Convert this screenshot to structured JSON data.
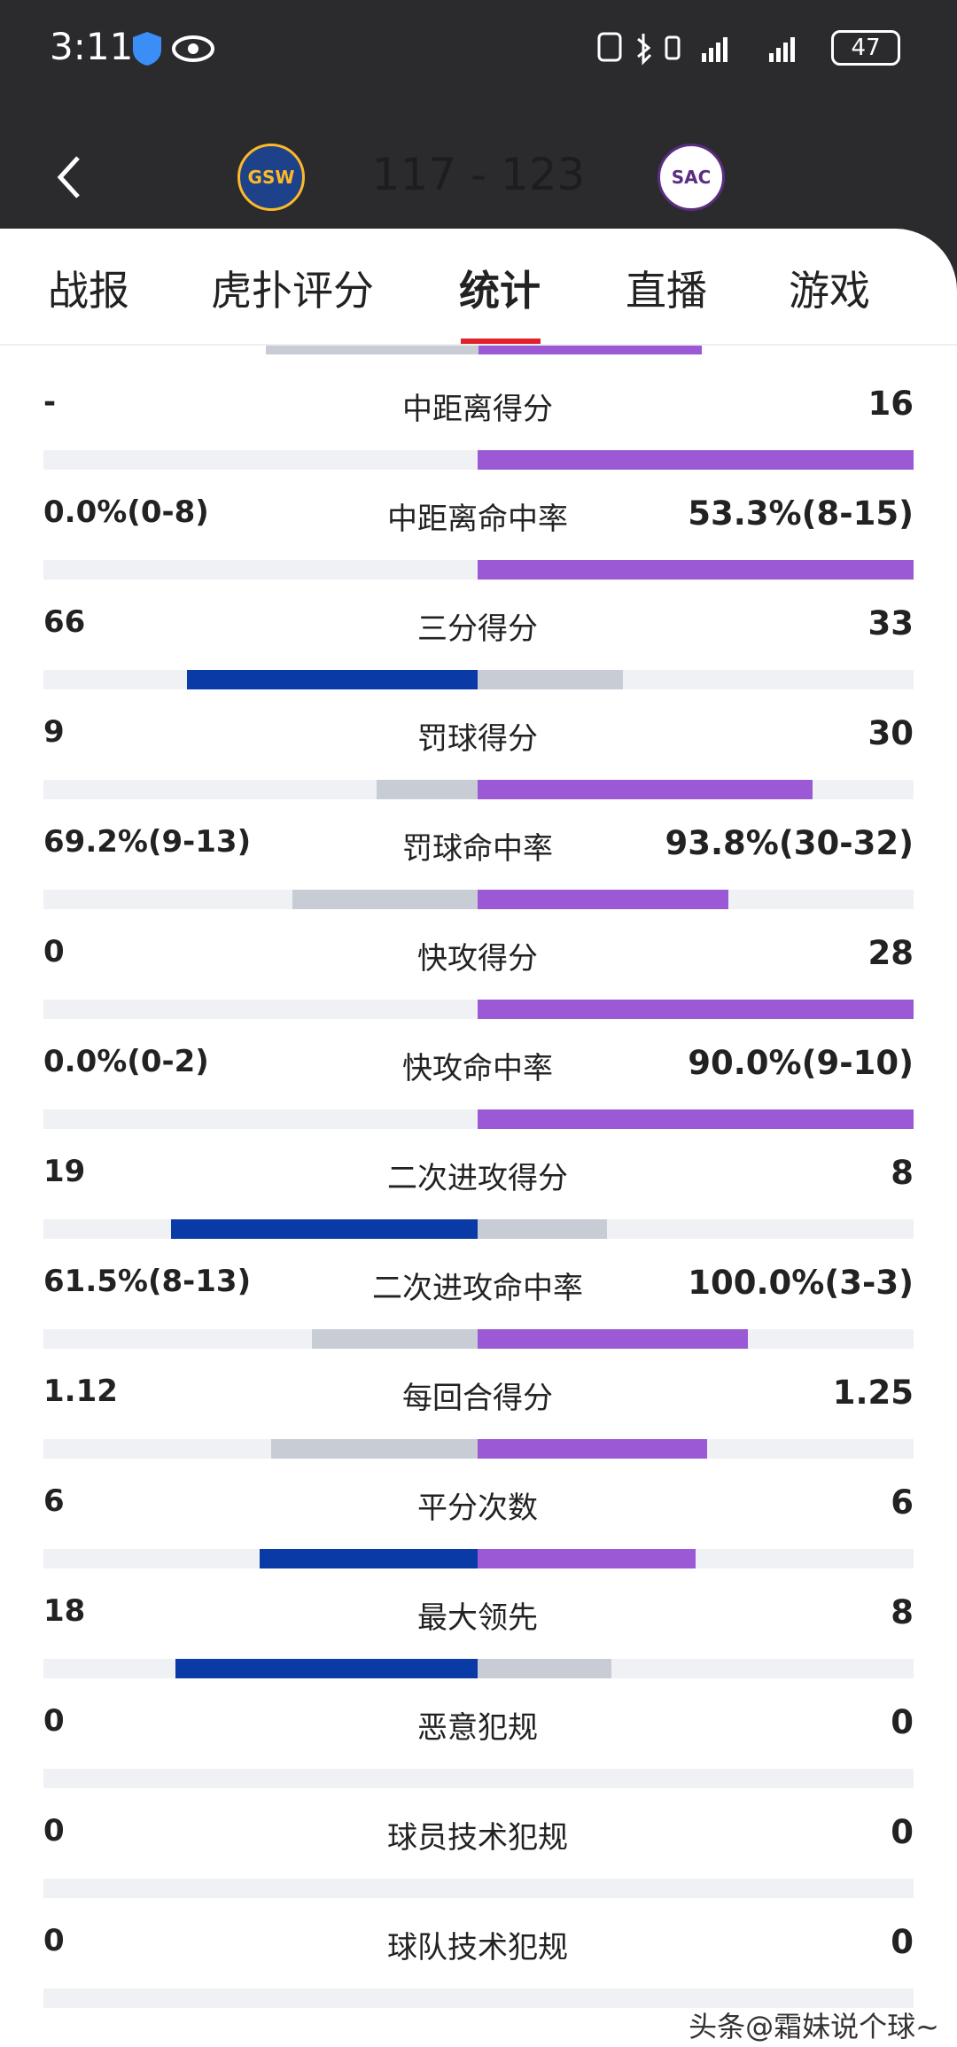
{
  "status_bar": {
    "time": "3:11",
    "battery": "47"
  },
  "header": {
    "home_team": "GSW",
    "score": "117 - 123",
    "away_team": "SAC"
  },
  "tabs": [
    "战报",
    "虎扑评分",
    "统计",
    "直播",
    "游戏"
  ],
  "active_tab": 2,
  "stats": [
    {
      "left": "-",
      "label": "中距离得分",
      "right": "16"
    },
    {
      "left": "0.0%(0-8)",
      "label": "中距离命中率",
      "right": "53.3%(8-15)"
    },
    {
      "left": "66",
      "label": "三分得分",
      "right": "33"
    },
    {
      "left": "9",
      "label": "罚球得分",
      "right": "30"
    },
    {
      "left": "69.2%(9-13)",
      "label": "罚球命中率",
      "right": "93.8%(30-32)"
    },
    {
      "left": "0",
      "label": "快攻得分",
      "right": "28"
    },
    {
      "left": "0.0%(0-2)",
      "label": "快攻命中率",
      "right": "90.0%(9-10)"
    },
    {
      "left": "19",
      "label": "二次进攻得分",
      "right": "8"
    },
    {
      "left": "61.5%(8-13)",
      "label": "二次进攻命中率",
      "right": "100.0%(3-3)"
    },
    {
      "left": "1.12",
      "label": "每回合得分",
      "right": "1.25"
    },
    {
      "left": "6",
      "label": "平分次数",
      "right": "6"
    },
    {
      "left": "18",
      "label": "最大领先",
      "right": "8"
    },
    {
      "left": "0",
      "label": "恶意犯规",
      "right": "0"
    },
    {
      "left": "0",
      "label": "球员技术犯规",
      "right": "0"
    },
    {
      "left": "0",
      "label": "球队技术犯规",
      "right": "0"
    }
  ],
  "watermark": "头条@霜妹说个球~"
}
